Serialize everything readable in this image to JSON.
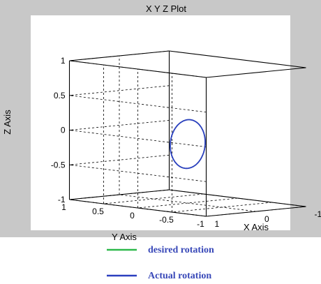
{
  "chart_data": {
    "type": "line",
    "projection": "3d",
    "title": "X Y Z Plot",
    "xlabel": "X Axis",
    "ylabel": "Y Axis",
    "zlabel": "Z Axis",
    "xlim": [
      -1,
      1
    ],
    "ylim": [
      -1,
      1
    ],
    "zlim": [
      -1,
      1
    ],
    "xticks": [
      "-1",
      "0",
      "1"
    ],
    "yticks": [
      "-1",
      "-0.5",
      "0",
      "0.5",
      "1"
    ],
    "zticks": [
      "1",
      "0.5",
      "0",
      "-0.5",
      "-1"
    ],
    "grid": true,
    "legend_placement": "bottom, outside plot",
    "series": [
      {
        "name": "desired rotation",
        "color": "#2db84a",
        "shape": "circle",
        "plane": "y = 0",
        "center": {
          "x": 0,
          "y": 0,
          "z": -0.15
        },
        "radius": 0.35
      },
      {
        "name": "Actual rotation",
        "color": "#2b3fbf",
        "shape": "circle",
        "plane": "y = 0",
        "center": {
          "x": 0,
          "y": 0,
          "z": -0.15
        },
        "radius": 0.35
      }
    ]
  },
  "colors": {
    "background": "#c8c8c8",
    "plot_area": "#ffffff",
    "legend_text": "#3848b8"
  }
}
